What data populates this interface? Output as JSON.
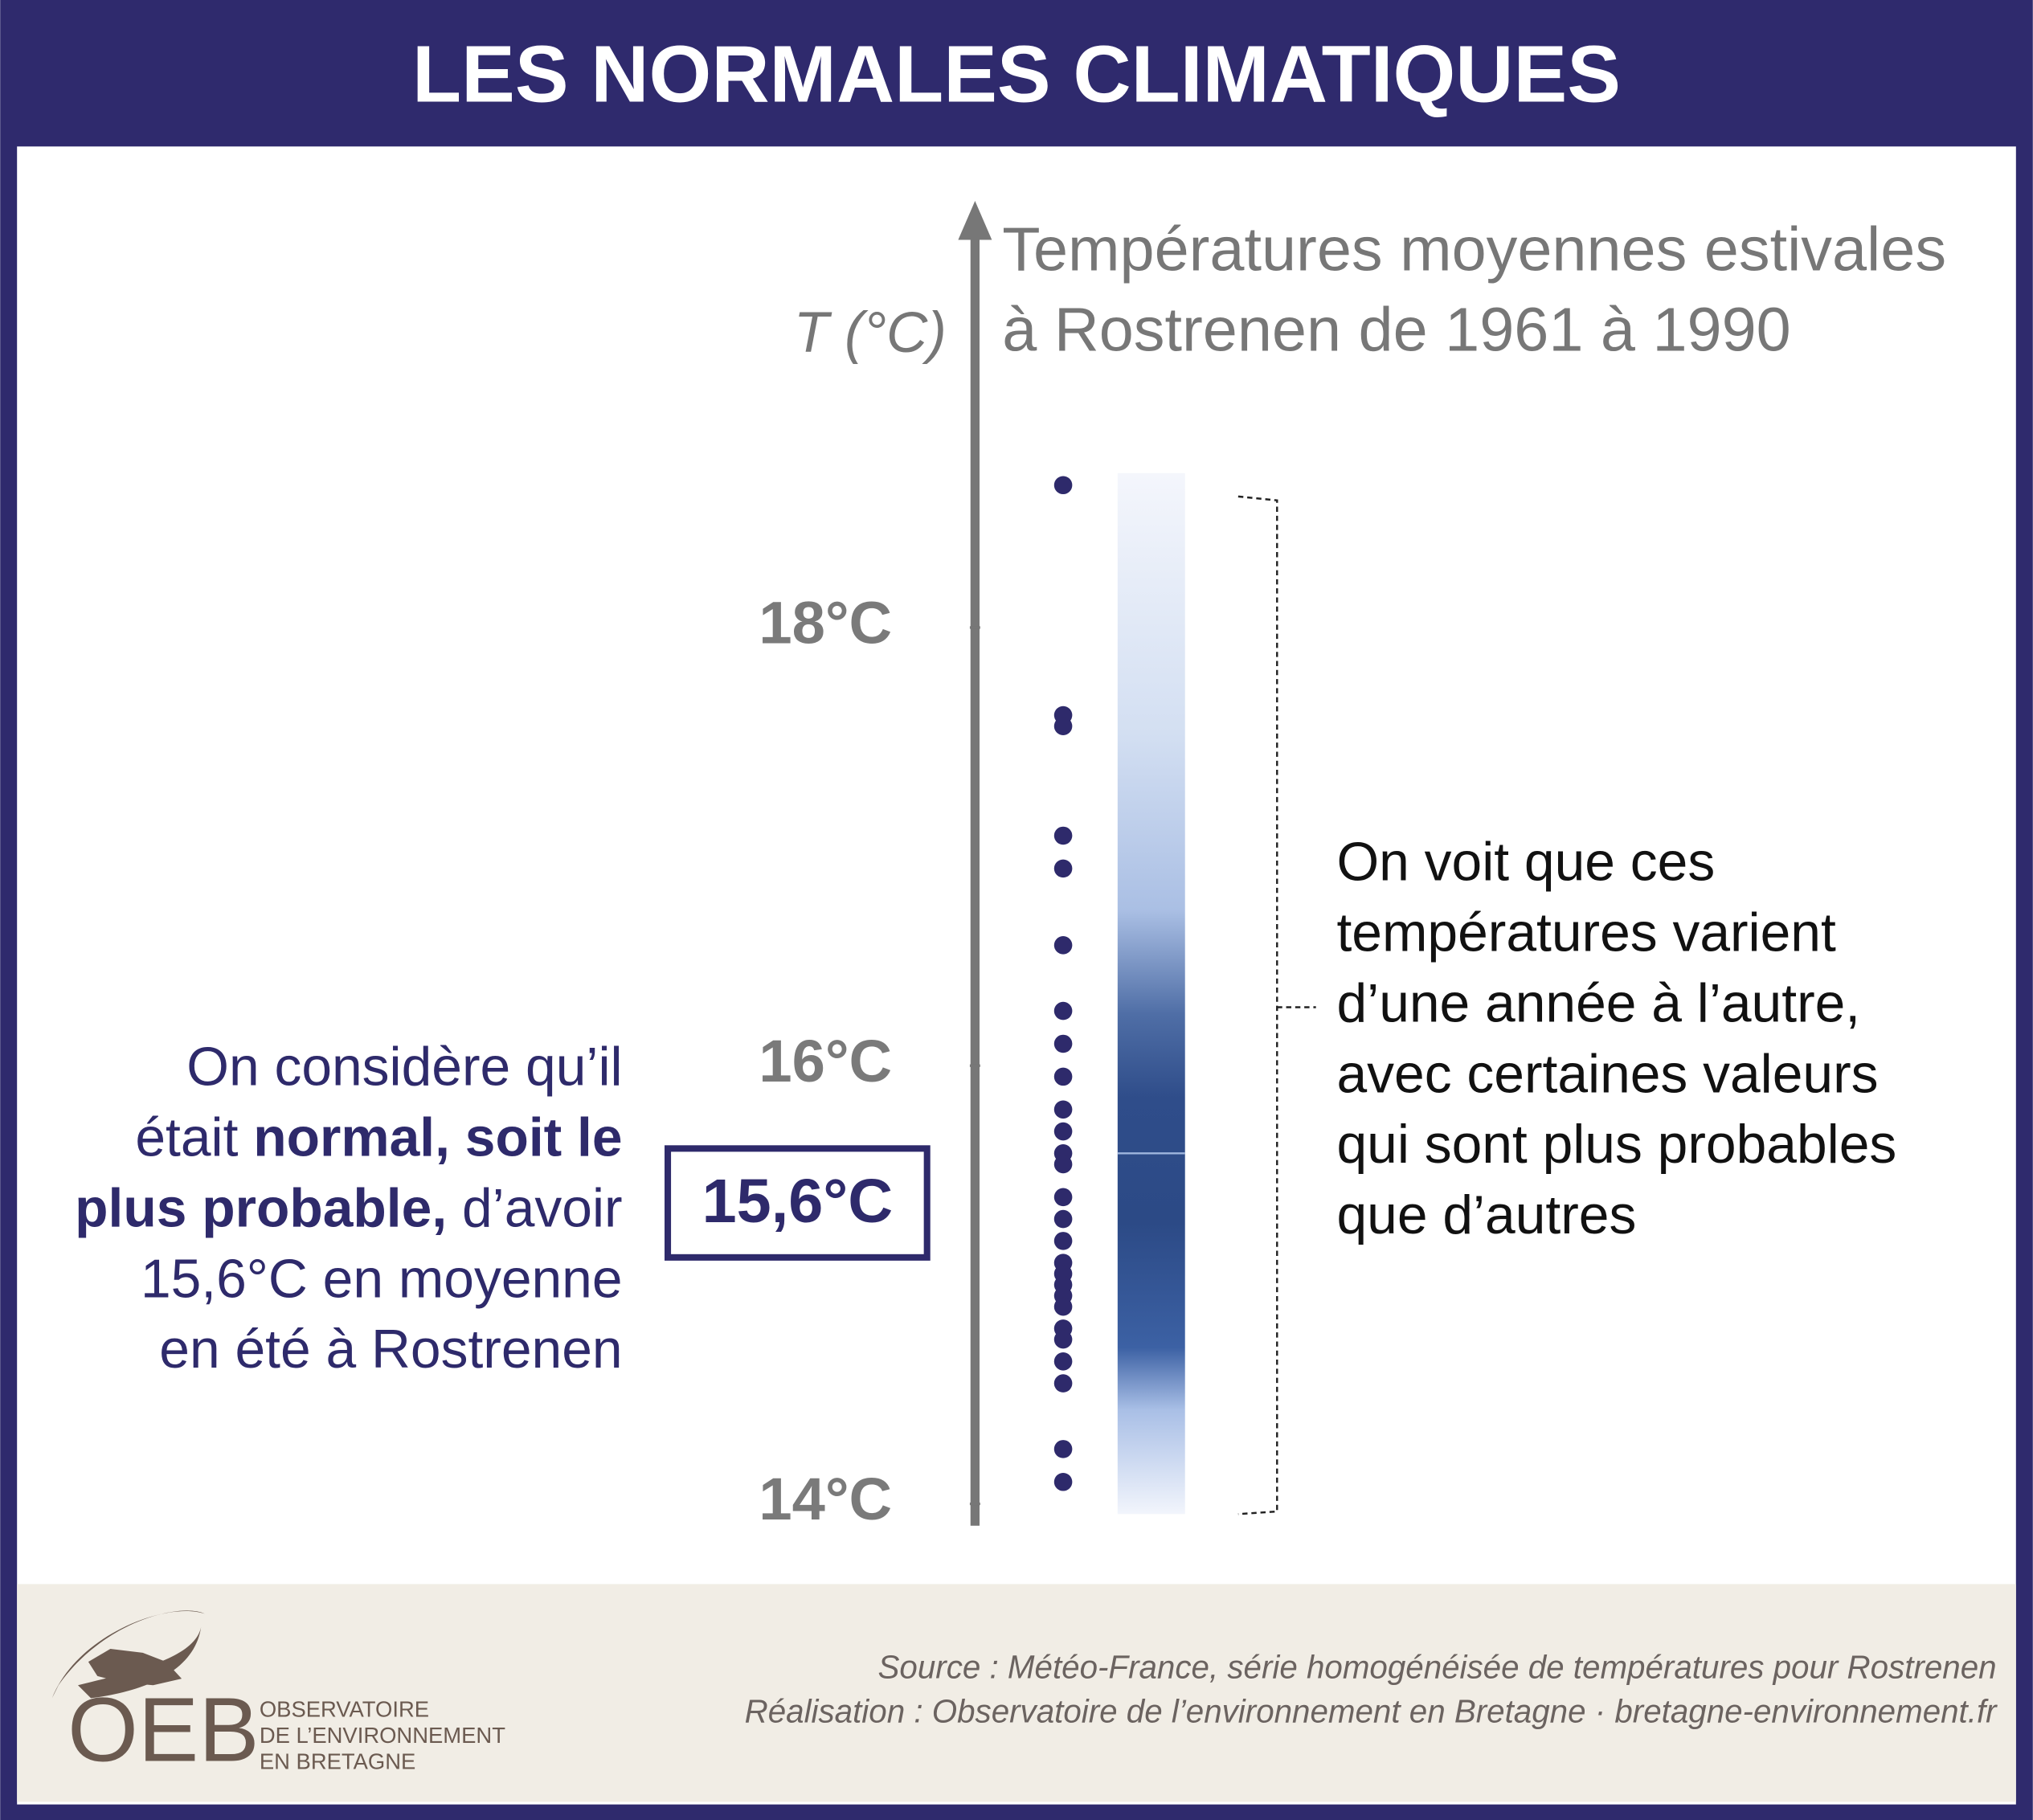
{
  "header": {
    "title": "LES NORMALES CLIMATIQUES"
  },
  "chart_data": {
    "type": "strip",
    "title": [
      "Températures moyennes estivales",
      "à Rostrenen de 1961 à 1990"
    ],
    "y_label": "T (°C)",
    "values": [
      18.65,
      17.6,
      17.55,
      17.05,
      16.9,
      16.55,
      16.25,
      16.1,
      15.95,
      15.8,
      15.7,
      15.6,
      15.55,
      15.4,
      15.3,
      15.2,
      15.1,
      15.05,
      15.0,
      14.95,
      14.9,
      14.8,
      14.75,
      14.65,
      14.55,
      14.25,
      14.1
    ],
    "color": "#2e2a6b",
    "ylim": [
      13.9,
      19.9
    ],
    "yticks": [
      {
        "value": 14,
        "label": "14°C"
      },
      {
        "value": 16,
        "label": "16°C"
      },
      {
        "value": 18,
        "label": "18°C"
      }
    ],
    "normal": {
      "value": 15.6,
      "label": "15,6°C"
    },
    "annotation_left": [
      [
        {
          "text": "On considère qu’il"
        }
      ],
      [
        {
          "text": "était "
        },
        {
          "text": "normal, soit le",
          "bold": true
        }
      ],
      [
        {
          "text": "plus probable,",
          "bold": true
        },
        {
          "text": " d’avoir"
        }
      ],
      [
        {
          "text": "15,6°C en moyenne"
        }
      ],
      [
        {
          "text": "en été à Rostrenen"
        }
      ]
    ],
    "annotation_right": [
      "On voit que ces",
      "températures varient",
      "d’une année à l’autre,",
      "avec certaines valeurs",
      "qui sont plus probables",
      "que d’autres"
    ]
  },
  "footer": {
    "source": "Source : Météo-France, série homogénéisée de températures pour Rostrenen",
    "credit": "Réalisation : Observatoire de l’environnement en Bretagne · bretagne-environnement.fr",
    "logo": {
      "acronym": "OEB",
      "name": [
        "OBSERVATOIRE",
        "DE L’ENVIRONNEMENT",
        "EN BRETAGNE"
      ]
    }
  }
}
